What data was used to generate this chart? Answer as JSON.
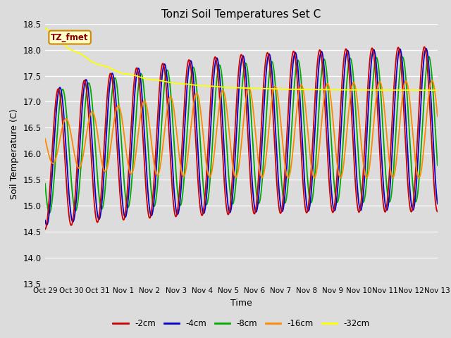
{
  "title": "Tonzi Soil Temperatures Set C",
  "xlabel": "Time",
  "ylabel": "Soil Temperature (C)",
  "ylim": [
    13.5,
    18.5
  ],
  "yticks": [
    13.5,
    14.0,
    14.5,
    15.0,
    15.5,
    16.0,
    16.5,
    17.0,
    17.5,
    18.0,
    18.5
  ],
  "xtick_labels": [
    "Oct 29",
    "Oct 30",
    "Oct 31",
    "Nov 1",
    "Nov 2",
    "Nov 3",
    "Nov 4",
    "Nov 5",
    "Nov 6",
    "Nov 7",
    "Nov 8",
    "Nov 9",
    "Nov 10",
    "Nov 11",
    "Nov 12",
    "Nov 13"
  ],
  "line_colors": {
    "-2cm": "#cc0000",
    "-4cm": "#0000cc",
    "-8cm": "#00aa00",
    "-16cm": "#ff8800",
    "-32cm": "#ffff00"
  },
  "legend_label": "TZ_fmet",
  "legend_bg": "#ffffcc",
  "legend_border": "#cc8800",
  "fig_bg": "#dcdcdc",
  "plot_bg": "#dcdcdc",
  "n_days": 15,
  "samples_per_day": 96
}
